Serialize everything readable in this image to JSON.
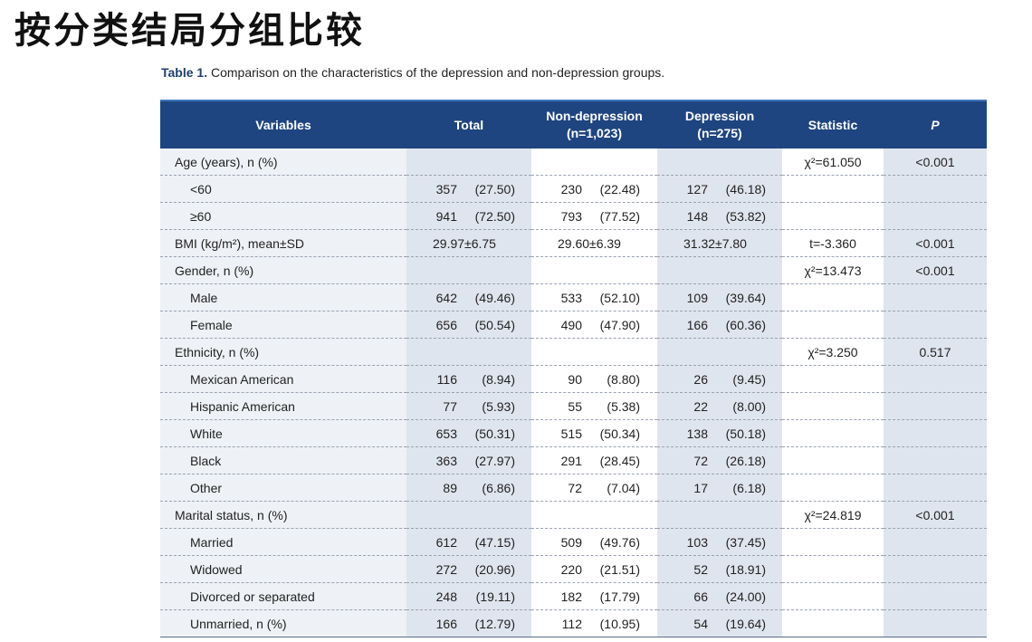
{
  "slide": {
    "title": "按分类结局分组比较"
  },
  "caption": {
    "label": "Table 1.",
    "text": " Comparison on the characteristics of the depression and non-depression groups."
  },
  "table": {
    "headers": {
      "variables": "Variables",
      "total": "Total",
      "nondep_line1": "Non-depression",
      "nondep_line2": "(n=1,023)",
      "dep_line1": "Depression",
      "dep_line2": "(n=275)",
      "statistic": "Statistic",
      "p": "P"
    },
    "rows": [
      {
        "variable": "Age (years), n (%)",
        "sub": false,
        "total": [
          "",
          ""
        ],
        "nondep": [
          "",
          ""
        ],
        "dep": [
          "",
          ""
        ],
        "statistic": "χ²=61.050",
        "p": "<0.001"
      },
      {
        "variable": "<60",
        "sub": true,
        "total": [
          "357",
          "(27.50)"
        ],
        "nondep": [
          "230",
          "(22.48)"
        ],
        "dep": [
          "127",
          "(46.18)"
        ],
        "statistic": "",
        "p": ""
      },
      {
        "variable": "≥60",
        "sub": true,
        "total": [
          "941",
          "(72.50)"
        ],
        "nondep": [
          "793",
          "(77.52)"
        ],
        "dep": [
          "148",
          "(53.82)"
        ],
        "statistic": "",
        "p": ""
      },
      {
        "variable": "BMI (kg/m²), mean±SD",
        "sub": false,
        "single": true,
        "total": [
          "29.97±6.75",
          ""
        ],
        "nondep": [
          "29.60±6.39",
          ""
        ],
        "dep": [
          "31.32±7.80",
          ""
        ],
        "statistic": "t=-3.360",
        "p": "<0.001"
      },
      {
        "variable": "Gender, n (%)",
        "sub": false,
        "total": [
          "",
          ""
        ],
        "nondep": [
          "",
          ""
        ],
        "dep": [
          "",
          ""
        ],
        "statistic": "χ²=13.473",
        "p": "<0.001"
      },
      {
        "variable": "Male",
        "sub": true,
        "total": [
          "642",
          "(49.46)"
        ],
        "nondep": [
          "533",
          "(52.10)"
        ],
        "dep": [
          "109",
          "(39.64)"
        ],
        "statistic": "",
        "p": ""
      },
      {
        "variable": "Female",
        "sub": true,
        "total": [
          "656",
          "(50.54)"
        ],
        "nondep": [
          "490",
          "(47.90)"
        ],
        "dep": [
          "166",
          "(60.36)"
        ],
        "statistic": "",
        "p": ""
      },
      {
        "variable": "Ethnicity, n (%)",
        "sub": false,
        "total": [
          "",
          ""
        ],
        "nondep": [
          "",
          ""
        ],
        "dep": [
          "",
          ""
        ],
        "statistic": "χ²=3.250",
        "p": "0.517"
      },
      {
        "variable": "Mexican American",
        "sub": true,
        "total": [
          "116",
          "(8.94)"
        ],
        "nondep": [
          "90",
          "(8.80)"
        ],
        "dep": [
          "26",
          "(9.45)"
        ],
        "statistic": "",
        "p": ""
      },
      {
        "variable": "Hispanic American",
        "sub": true,
        "total": [
          "77",
          "(5.93)"
        ],
        "nondep": [
          "55",
          "(5.38)"
        ],
        "dep": [
          "22",
          "(8.00)"
        ],
        "statistic": "",
        "p": ""
      },
      {
        "variable": "White",
        "sub": true,
        "total": [
          "653",
          "(50.31)"
        ],
        "nondep": [
          "515",
          "(50.34)"
        ],
        "dep": [
          "138",
          "(50.18)"
        ],
        "statistic": "",
        "p": ""
      },
      {
        "variable": "Black",
        "sub": true,
        "total": [
          "363",
          "(27.97)"
        ],
        "nondep": [
          "291",
          "(28.45)"
        ],
        "dep": [
          "72",
          "(26.18)"
        ],
        "statistic": "",
        "p": ""
      },
      {
        "variable": "Other",
        "sub": true,
        "total": [
          "89",
          "(6.86)"
        ],
        "nondep": [
          "72",
          "(7.04)"
        ],
        "dep": [
          "17",
          "(6.18)"
        ],
        "statistic": "",
        "p": ""
      },
      {
        "variable": "Marital status, n (%)",
        "sub": false,
        "total": [
          "",
          ""
        ],
        "nondep": [
          "",
          ""
        ],
        "dep": [
          "",
          ""
        ],
        "statistic": "χ²=24.819",
        "p": "<0.001"
      },
      {
        "variable": "Married",
        "sub": true,
        "total": [
          "612",
          "(47.15)"
        ],
        "nondep": [
          "509",
          "(49.76)"
        ],
        "dep": [
          "103",
          "(37.45)"
        ],
        "statistic": "",
        "p": ""
      },
      {
        "variable": "Widowed",
        "sub": true,
        "total": [
          "272",
          "(20.96)"
        ],
        "nondep": [
          "220",
          "(21.51)"
        ],
        "dep": [
          "52",
          "(18.91)"
        ],
        "statistic": "",
        "p": ""
      },
      {
        "variable": "Divorced or separated",
        "sub": true,
        "total": [
          "248",
          "(19.11)"
        ],
        "nondep": [
          "182",
          "(17.79)"
        ],
        "dep": [
          "66",
          "(24.00)"
        ],
        "statistic": "",
        "p": ""
      },
      {
        "variable": "Unmarried, n (%)",
        "sub": true,
        "total": [
          "166",
          "(12.79)"
        ],
        "nondep": [
          "112",
          "(10.95)"
        ],
        "dep": [
          "54",
          "(19.64)"
        ],
        "statistic": "",
        "p": ""
      }
    ]
  }
}
